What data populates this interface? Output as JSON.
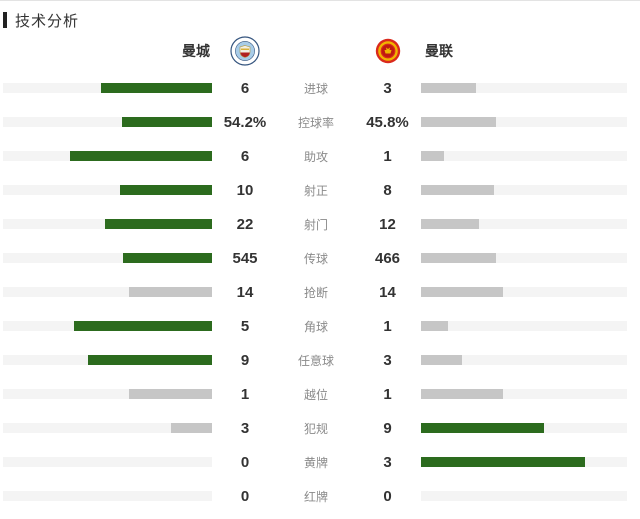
{
  "header": {
    "title": "技术分析"
  },
  "teams": {
    "home": {
      "name": "曼城"
    },
    "away": {
      "name": "曼联"
    }
  },
  "icons": {
    "home_badge": "man-city-crest",
    "away_badge": "man-united-crest"
  },
  "colors": {
    "leading_bar": "#2c6b1e",
    "trailing_bar": "#c6c6c6",
    "bar_track": "#f4f4f4",
    "accent": "#222222",
    "value_text": "#333333",
    "label_text": "#8a8a8a",
    "city_badge_blue": "#a8cce8",
    "united_badge_red": "#da291c"
  },
  "chart_data": {
    "type": "bar",
    "layout": "horizontal-paired-comparison",
    "title": "技术分析",
    "categories": [
      "进球",
      "控球率",
      "助攻",
      "射正",
      "射门",
      "传球",
      "抢断",
      "角球",
      "任意球",
      "越位",
      "犯规",
      "黄牌",
      "红牌"
    ],
    "series": [
      {
        "name": "曼城",
        "values": [
          6,
          54.2,
          6,
          10,
          22,
          545,
          14,
          5,
          9,
          1,
          3,
          0,
          0
        ],
        "display": [
          "6",
          "54.2%",
          "6",
          "10",
          "22",
          "545",
          "14",
          "5",
          "9",
          "1",
          "3",
          "0",
          "0"
        ]
      },
      {
        "name": "曼联",
        "values": [
          3,
          45.8,
          1,
          8,
          12,
          466,
          14,
          1,
          3,
          1,
          9,
          3,
          0
        ],
        "display": [
          "3",
          "45.8%",
          "1",
          "8",
          "12",
          "466",
          "14",
          "1",
          "3",
          "1",
          "9",
          "3",
          "0"
        ]
      }
    ],
    "bar_rule": "fill width = value/(home+away) * 79.4% of track; green for higher value, grey for lower or tied",
    "max_fill_pct": 79.4
  }
}
